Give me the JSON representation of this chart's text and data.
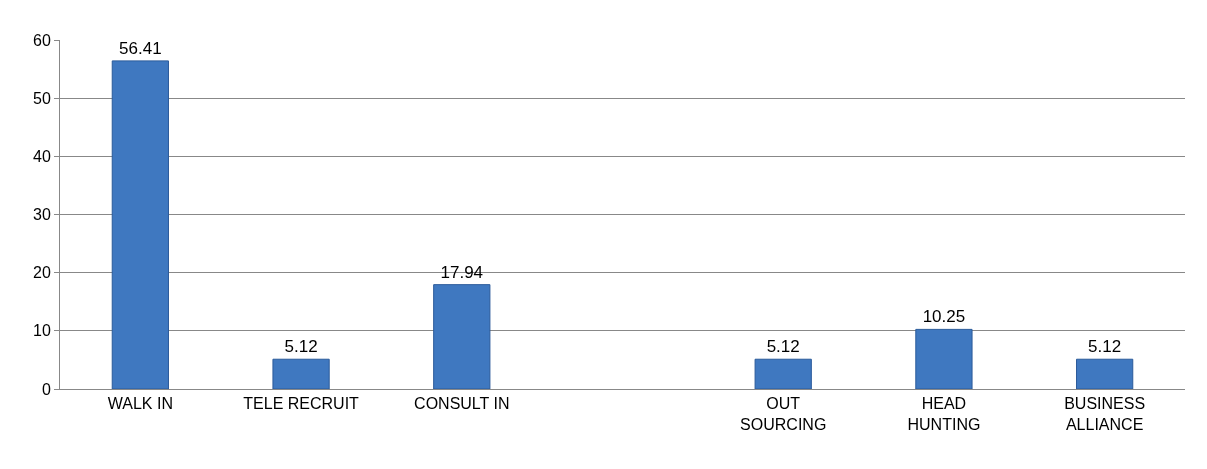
{
  "chart_data": {
    "type": "bar",
    "categories": [
      "WALK IN",
      "TELE RECRUIT",
      "CONSULT IN",
      null,
      "OUT\nSOURCING",
      "HEAD\nHUNTING",
      "BUSINESS\nALLIANCE"
    ],
    "values": [
      56.41,
      5.12,
      17.94,
      null,
      5.12,
      10.25,
      5.12
    ],
    "color": "#3f78c0",
    "ylim": [
      0,
      60
    ],
    "yticks": [
      0,
      10,
      20,
      30,
      40,
      50,
      60
    ],
    "grid": "y",
    "data_labels": true,
    "legend": false
  }
}
